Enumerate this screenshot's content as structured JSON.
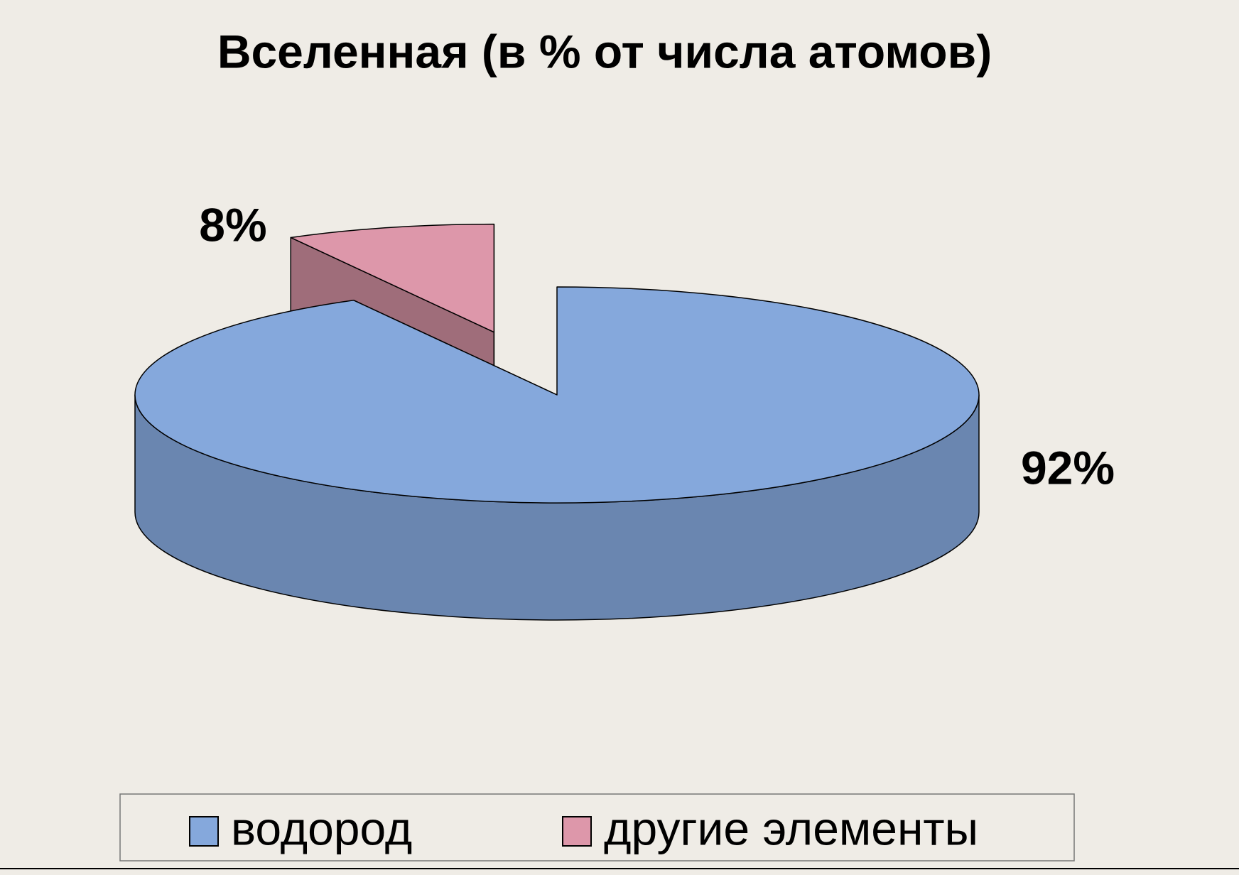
{
  "chart_data": {
    "type": "pie",
    "title": "Вселенная (в % от числа атомов)",
    "categories": [
      "водород",
      "другие элементы"
    ],
    "values": [
      92,
      8
    ],
    "value_labels": [
      "92%",
      "8%"
    ],
    "colors": [
      "#85a8dc",
      "#dd97aa"
    ],
    "legend": "bottom"
  }
}
